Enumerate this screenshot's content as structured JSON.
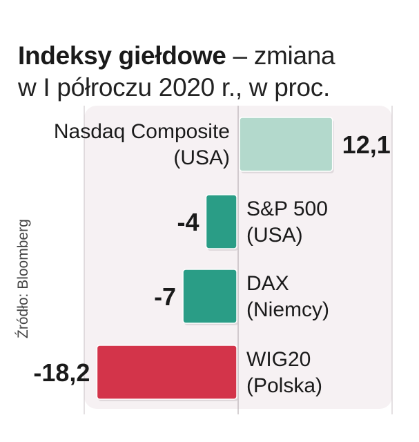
{
  "title_bold": "Indeksy giełdowe",
  "title_rest_line1": " – zmiana",
  "title_line2": "w I półroczu 2020 r., w proc.",
  "source": "Źródło: Bloomberg",
  "chart_data": {
    "type": "bar",
    "orientation": "horizontal",
    "title": "Indeksy giełdowe – zmiana w I półroczu 2020 r., w proc.",
    "categories": [
      {
        "line1": "Nasdaq Composite",
        "line2": "(USA)"
      },
      {
        "line1": "S&P 500",
        "line2": "(USA)"
      },
      {
        "line1": "DAX",
        "line2": "(Niemcy)"
      },
      {
        "line1": "WIG20",
        "line2": "(Polska)"
      }
    ],
    "values": [
      12.1,
      -4,
      -7,
      -18.2
    ],
    "value_labels": [
      "12,1",
      "-4",
      "-7",
      "-18,2"
    ],
    "colors": [
      "#b3d9cc",
      "#2a9d86",
      "#2a9d86",
      "#d3344a"
    ],
    "grid": true
  }
}
